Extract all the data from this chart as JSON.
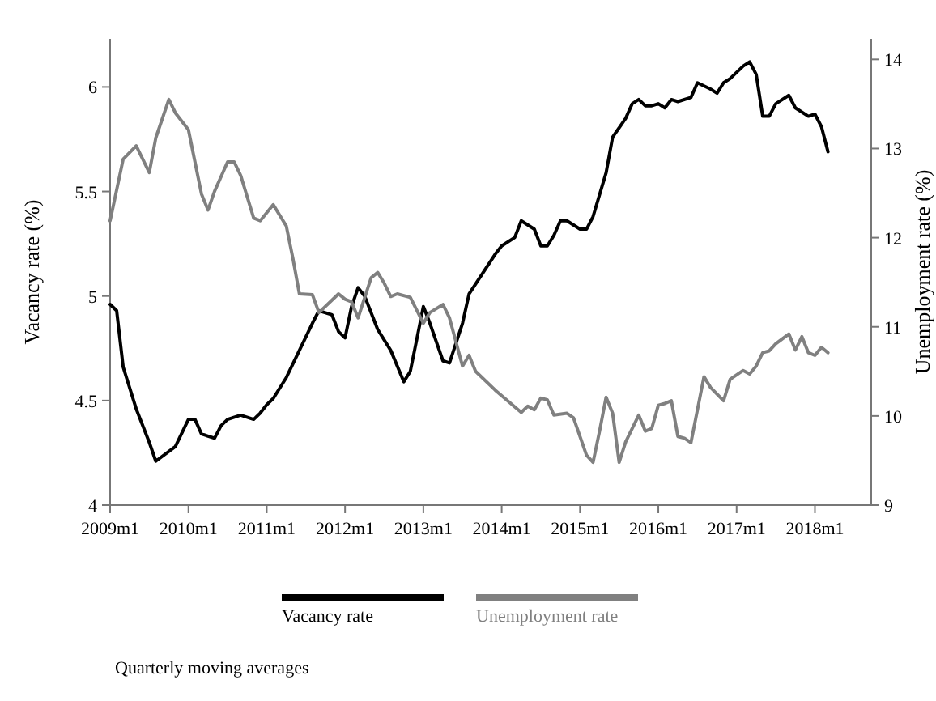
{
  "chart_data": {
    "type": "line",
    "ylabel": "Vacancy rate (%)",
    "y2label": "Unemployment rate (%)",
    "annotations": [
      "Quarterly moving averages"
    ],
    "xlim": [
      "2009-01",
      "2018-09-20"
    ],
    "xticks": [
      {
        "value": "2009-01",
        "label": "2009m1"
      },
      {
        "value": "2010-01",
        "label": "2010m1"
      },
      {
        "value": "2011-01",
        "label": "2011m1"
      },
      {
        "value": "2012-01",
        "label": "2012m1"
      },
      {
        "value": "2013-01",
        "label": "2013m1"
      },
      {
        "value": "2014-01",
        "label": "2014m1"
      },
      {
        "value": "2015-01",
        "label": "2015m1"
      },
      {
        "value": "2016-01",
        "label": "2016m1"
      },
      {
        "value": "2017-01",
        "label": "2017m1"
      },
      {
        "value": "2018-01",
        "label": "2018m1"
      }
    ],
    "ylim": [
      4,
      6.23
    ],
    "yticks": [
      4,
      4.5,
      5,
      5.5,
      6
    ],
    "y2lim": [
      9,
      14.23
    ],
    "y2ticks": [
      9,
      10,
      11,
      12,
      13,
      14
    ],
    "grid": false,
    "legend": "bottom",
    "line_style": "solid",
    "marker": "none",
    "series": [
      {
        "name": "Vacancy rate",
        "color": "#000000",
        "x": [
          "2009-01",
          "2009-02",
          "2009-03",
          "2009-05",
          "2009-07",
          "2009-08",
          "2009-11",
          "2010-01",
          "2010-02",
          "2010-03",
          "2010-05",
          "2010-06",
          "2010-07",
          "2010-09",
          "2010-11",
          "2010-12",
          "2011-01",
          "2011-02",
          "2011-04",
          "2011-06",
          "2011-08",
          "2011-09",
          "2011-11",
          "2011-12",
          "2012-01",
          "2012-02",
          "2012-03",
          "2012-04",
          "2012-06",
          "2012-08",
          "2012-10",
          "2012-11",
          "2013-01",
          "2013-02",
          "2013-04",
          "2013-05",
          "2013-07",
          "2013-08",
          "2013-12",
          "2014-01",
          "2014-03",
          "2014-04",
          "2014-06",
          "2014-07",
          "2014-08",
          "2014-09",
          "2014-10",
          "2014-11",
          "2015-01",
          "2015-02",
          "2015-03",
          "2015-05",
          "2015-06",
          "2015-08",
          "2015-09",
          "2015-10",
          "2015-11",
          "2015-12",
          "2016-01",
          "2016-02",
          "2016-03",
          "2016-04",
          "2016-06",
          "2016-07",
          "2016-09",
          "2016-10",
          "2016-11",
          "2016-12",
          "2017-02",
          "2017-03",
          "2017-04",
          "2017-05",
          "2017-06",
          "2017-07",
          "2017-09",
          "2017-10",
          "2017-12",
          "2018-01",
          "2018-02",
          "2018-03"
        ],
        "values": [
          4.96,
          4.93,
          4.66,
          4.46,
          4.3,
          4.21,
          4.28,
          4.41,
          4.41,
          4.34,
          4.32,
          4.38,
          4.41,
          4.43,
          4.41,
          4.44,
          4.48,
          4.51,
          4.61,
          4.74,
          4.87,
          4.93,
          4.91,
          4.83,
          4.8,
          4.95,
          5.04,
          5.0,
          4.84,
          4.74,
          4.59,
          4.64,
          4.95,
          4.87,
          4.69,
          4.68,
          4.87,
          5.01,
          5.2,
          5.24,
          5.28,
          5.36,
          5.32,
          5.24,
          5.24,
          5.29,
          5.36,
          5.36,
          5.32,
          5.32,
          5.38,
          5.59,
          5.76,
          5.85,
          5.92,
          5.94,
          5.91,
          5.91,
          5.92,
          5.9,
          5.94,
          5.93,
          5.95,
          6.02,
          5.99,
          5.97,
          6.02,
          6.04,
          6.1,
          6.12,
          6.06,
          5.86,
          5.86,
          5.92,
          5.96,
          5.9,
          5.86,
          5.87,
          5.81,
          5.69
        ]
      },
      {
        "name": "Unemployment rate",
        "color": "#808080",
        "axis": "y2",
        "x": [
          "2009-01",
          "2009-03",
          "2009-05",
          "2009-07",
          "2009-08",
          "2009-10",
          "2009-11",
          "2010-01",
          "2010-02",
          "2010-03",
          "2010-04",
          "2010-05",
          "2010-07",
          "2010-08",
          "2010-09",
          "2010-11",
          "2010-12",
          "2011-02",
          "2011-04",
          "2011-05",
          "2011-06",
          "2011-08",
          "2011-09",
          "2011-12",
          "2012-01",
          "2012-02",
          "2012-03",
          "2012-05",
          "2012-06",
          "2012-07",
          "2012-08",
          "2012-09",
          "2012-11",
          "2013-01",
          "2013-02",
          "2013-04",
          "2013-05",
          "2013-07",
          "2013-08",
          "2013-09",
          "2013-12",
          "2014-04",
          "2014-05",
          "2014-06",
          "2014-07",
          "2014-08",
          "2014-09",
          "2014-11",
          "2014-12",
          "2015-02",
          "2015-03",
          "2015-04",
          "2015-05",
          "2015-06",
          "2015-07",
          "2015-08",
          "2015-10",
          "2015-11",
          "2015-12",
          "2016-01",
          "2016-02",
          "2016-03",
          "2016-04",
          "2016-05",
          "2016-06",
          "2016-08",
          "2016-09",
          "2016-11",
          "2016-12",
          "2017-02",
          "2017-03",
          "2017-04",
          "2017-05",
          "2017-06",
          "2017-07",
          "2017-09",
          "2017-10",
          "2017-11",
          "2017-12",
          "2018-01",
          "2018-02",
          "2018-03"
        ],
        "values": [
          12.19,
          12.88,
          13.03,
          12.73,
          13.12,
          13.55,
          13.4,
          13.21,
          12.85,
          12.49,
          12.31,
          12.52,
          12.85,
          12.85,
          12.7,
          12.22,
          12.19,
          12.37,
          12.13,
          11.77,
          11.37,
          11.36,
          11.16,
          11.37,
          11.31,
          11.28,
          11.1,
          11.55,
          11.61,
          11.49,
          11.34,
          11.37,
          11.33,
          11.04,
          11.16,
          11.25,
          11.1,
          10.56,
          10.68,
          10.5,
          10.29,
          10.04,
          10.11,
          10.07,
          10.2,
          10.18,
          10.01,
          10.03,
          9.98,
          9.56,
          9.48,
          9.83,
          10.21,
          10.03,
          9.48,
          9.71,
          10.01,
          9.83,
          9.86,
          10.12,
          10.14,
          10.17,
          9.77,
          9.75,
          9.7,
          10.44,
          10.32,
          10.17,
          10.41,
          10.51,
          10.47,
          10.56,
          10.71,
          10.73,
          10.81,
          10.92,
          10.74,
          10.89,
          10.71,
          10.68,
          10.77,
          10.71
        ]
      }
    ]
  }
}
